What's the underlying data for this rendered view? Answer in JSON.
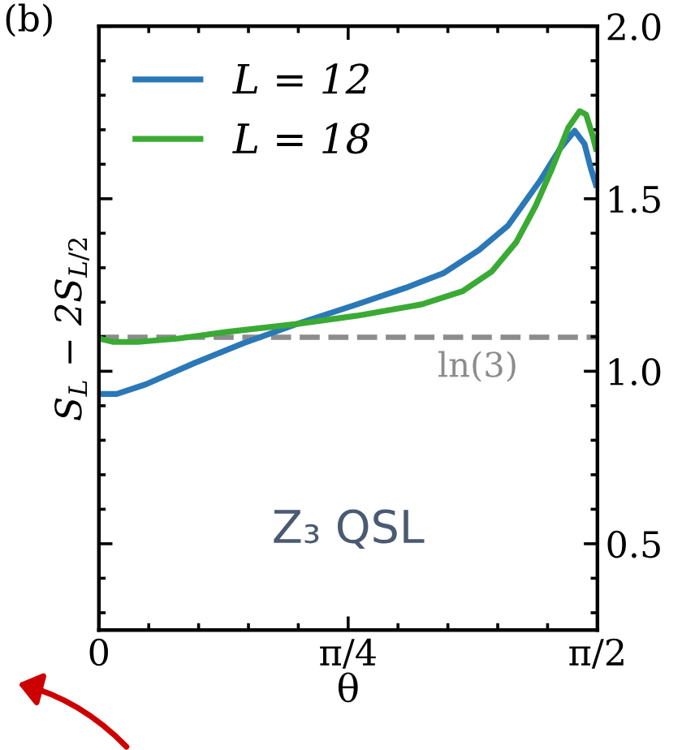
{
  "chart_data": {
    "type": "line",
    "xlabel": "θ",
    "ylabel": "S$_{L}$ − 2S$_{L/2}$",
    "annotations": [
      "(b)",
      "Z₃ QSL"
    ],
    "series": [
      {
        "name": "L = 12",
        "color": "#2b78b8",
        "x": [
          0,
          0.056,
          0.148,
          0.302,
          0.455,
          0.624,
          0.814,
          0.967,
          1.085,
          1.197,
          1.289,
          1.392,
          1.453,
          1.499,
          1.53,
          1.55,
          1.566
        ],
        "values": [
          0.934,
          0.934,
          0.962,
          1.024,
          1.081,
          1.137,
          1.194,
          1.242,
          1.284,
          1.351,
          1.422,
          1.555,
          1.645,
          1.697,
          1.659,
          1.588,
          1.54
        ]
      },
      {
        "name": "L = 18",
        "color": "#3aaa35",
        "x": [
          0,
          0.046,
          0.123,
          0.251,
          0.404,
          0.624,
          0.814,
          1.018,
          1.146,
          1.238,
          1.315,
          1.376,
          1.428,
          1.479,
          1.515,
          1.535,
          1.556,
          1.566
        ],
        "values": [
          1.095,
          1.085,
          1.085,
          1.095,
          1.114,
          1.137,
          1.161,
          1.194,
          1.232,
          1.289,
          1.374,
          1.479,
          1.588,
          1.706,
          1.754,
          1.744,
          1.682,
          1.645
        ]
      }
    ],
    "ref_lines": [
      {
        "axis": "y",
        "value": 1.0986,
        "label": "ln(3)",
        "color": "#8c8c8c",
        "line_style": "dashed"
      }
    ],
    "xlim": [
      0,
      1.5708
    ],
    "xticks": [
      0,
      {
        "value": 0.7854,
        "label": "π/4"
      },
      {
        "value": 1.5708,
        "label": "π/2"
      }
    ],
    "ylim": [
      0.25,
      2.0
    ],
    "yticks": [
      {
        "value": 0.5,
        "label": "0.5"
      },
      {
        "value": 1.0,
        "label": "1.0"
      },
      {
        "value": 1.5,
        "label": "1.5"
      },
      {
        "value": 2.0,
        "label": "2.0"
      }
    ],
    "legend": "top left",
    "grid": false,
    "marker": "none",
    "line_style": "solid"
  }
}
